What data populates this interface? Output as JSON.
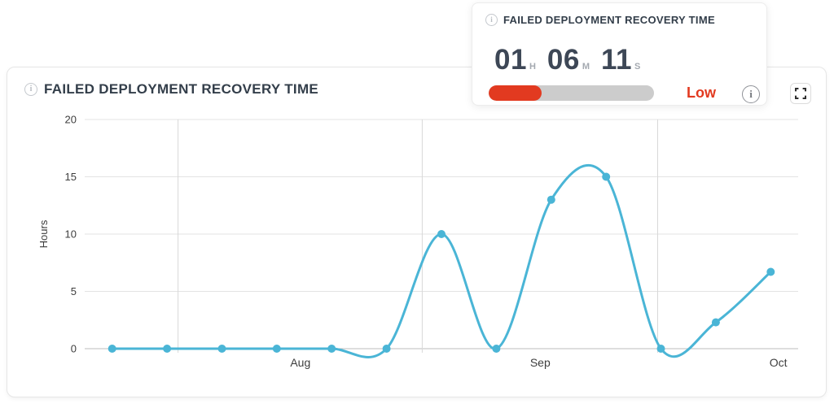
{
  "panel": {
    "title": "FAILED DEPLOYMENT RECOVERY TIME"
  },
  "kpi_card": {
    "title": "FAILED DEPLOYMENT RECOVERY TIME",
    "time": {
      "hours": "01",
      "hours_unit": "H",
      "minutes": "06",
      "minutes_unit": "M",
      "seconds": "11",
      "seconds_unit": "S"
    },
    "progress": {
      "percent": 32,
      "fill_color": "#e23a20",
      "track_color": "#cccccc"
    },
    "rating_label": "Low",
    "rating_color": "#e23a20"
  },
  "icons": {
    "info_glyph": "i"
  },
  "chart_data": {
    "type": "line",
    "title": "Failed Deployment Recovery Time",
    "xlabel": "",
    "ylabel": "Hours",
    "ylim": [
      0,
      20
    ],
    "yticks": [
      0,
      5,
      10,
      15,
      20
    ],
    "x": [
      0,
      1,
      2,
      3,
      4,
      5,
      6,
      7,
      8,
      9,
      10,
      11,
      12
    ],
    "values": [
      0,
      0,
      0,
      0,
      0,
      0,
      10,
      0,
      13,
      15,
      0,
      2.3,
      6.7
    ],
    "x_range": [
      -0.5,
      12.5
    ],
    "x_axis_months": [
      {
        "label": "Aug",
        "line_x": 1.2,
        "label_x": 3.43
      },
      {
        "label": "Sep",
        "line_x": 5.65,
        "label_x": 7.8
      },
      {
        "label": "Oct",
        "line_x": 9.94,
        "label_x": 12.14
      }
    ],
    "smooth": true,
    "grid": true,
    "legend": false,
    "line_color": "#4ab5d6",
    "point_radius": 5,
    "colors": {
      "gridline": "#e3e3e3",
      "zero_line": "#bdbdbd",
      "month_line": "#d8d8d8",
      "tick_text": "#3d3d3d"
    }
  }
}
